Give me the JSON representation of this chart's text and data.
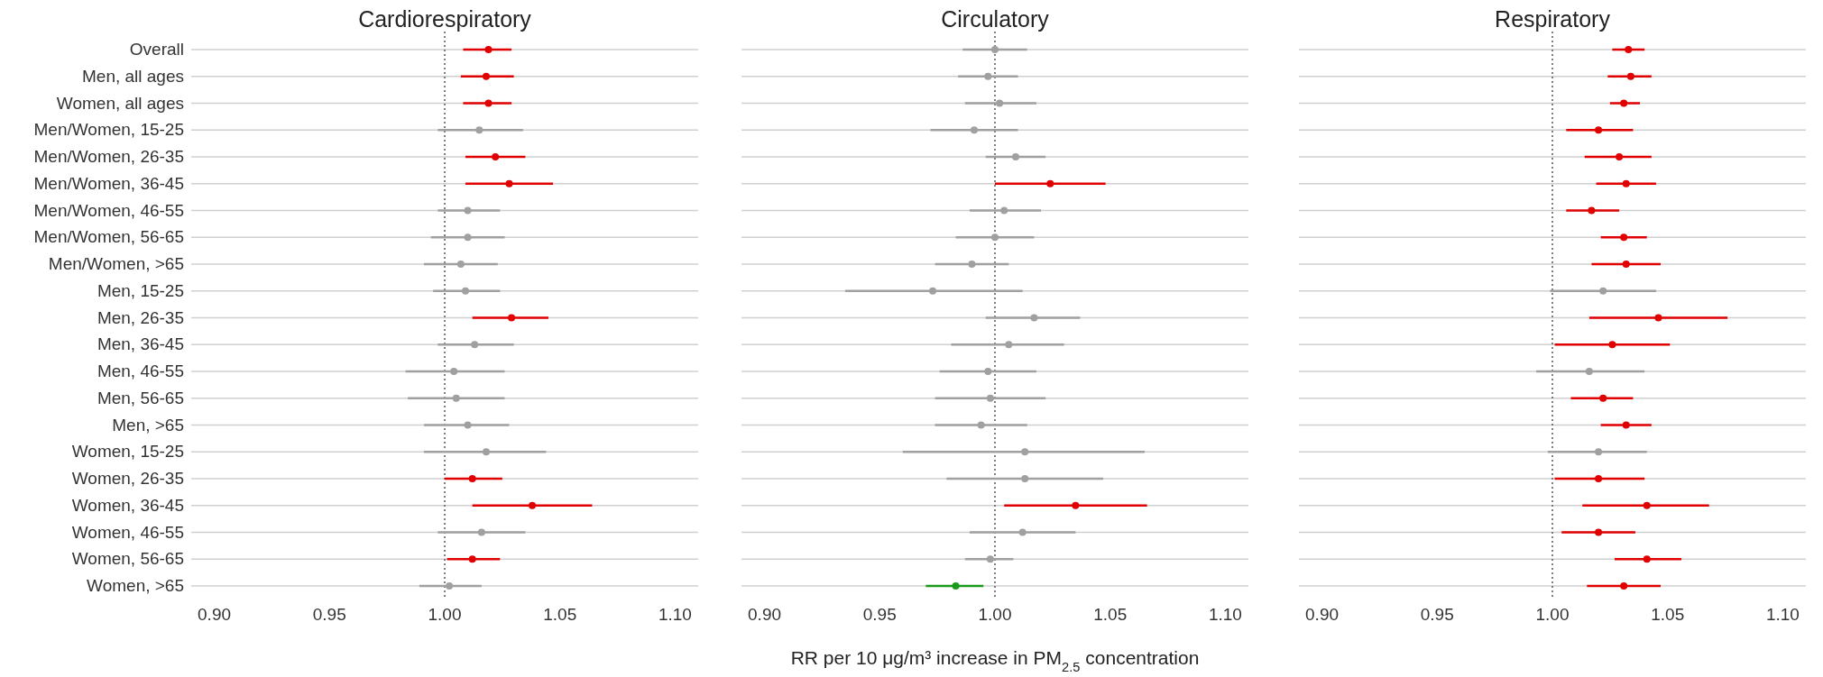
{
  "chart_data": [
    {
      "type": "scatter",
      "orientation": "horizontal",
      "title": "Cardiorespiratory",
      "categories": [
        "Overall",
        "Men, all ages",
        "Women, all ages",
        "Men/Women, 15-25",
        "Men/Women, 26-35",
        "Men/Women, 36-45",
        "Men/Women, 46-55",
        "Men/Women, 56-65",
        "Men/Women, >65",
        "Men, 15-25",
        "Men, 26-35",
        "Men, 36-45",
        "Men, 46-55",
        "Men, 56-65",
        "Men, >65",
        "Women, 15-25",
        "Women, 26-35",
        "Women, 36-45",
        "Women, 46-55",
        "Women, 56-65",
        "Women, >65"
      ],
      "values": [
        1.019,
        1.018,
        1.019,
        1.015,
        1.022,
        1.028,
        1.01,
        1.01,
        1.007,
        1.009,
        1.029,
        1.013,
        1.004,
        1.005,
        1.01,
        1.018,
        1.012,
        1.038,
        1.016,
        1.012,
        1.002
      ],
      "errors": [
        [
          1.008,
          1.029
        ],
        [
          1.007,
          1.03
        ],
        [
          1.008,
          1.029
        ],
        [
          0.997,
          1.034
        ],
        [
          1.009,
          1.035
        ],
        [
          1.009,
          1.047
        ],
        [
          0.997,
          1.024
        ],
        [
          0.994,
          1.026
        ],
        [
          0.991,
          1.023
        ],
        [
          0.995,
          1.024
        ],
        [
          1.012,
          1.045
        ],
        [
          0.997,
          1.03
        ],
        [
          0.983,
          1.026
        ],
        [
          0.984,
          1.026
        ],
        [
          0.991,
          1.028
        ],
        [
          0.991,
          1.044
        ],
        [
          1.0,
          1.025
        ],
        [
          1.012,
          1.064
        ],
        [
          0.997,
          1.035
        ],
        [
          1.001,
          1.024
        ],
        [
          0.989,
          1.016
        ]
      ],
      "colors": [
        "#e00000",
        "#e00000",
        "#e00000",
        "#a0a0a0",
        "#e00000",
        "#e00000",
        "#a0a0a0",
        "#a0a0a0",
        "#a0a0a0",
        "#a0a0a0",
        "#e00000",
        "#a0a0a0",
        "#a0a0a0",
        "#a0a0a0",
        "#a0a0a0",
        "#a0a0a0",
        "#e00000",
        "#e00000",
        "#a0a0a0",
        "#e00000",
        "#a0a0a0"
      ],
      "xlim": [
        0.89,
        1.11
      ],
      "xticks": [
        {
          "value": 0.9,
          "label": "0.90"
        },
        {
          "value": 0.95,
          "label": "0.95"
        },
        {
          "value": 1,
          "label": "1.00"
        },
        {
          "value": 1.05,
          "label": "1.05"
        },
        {
          "value": 1.1,
          "label": "1.10"
        }
      ],
      "ref_lines": [
        {
          "axis": "x",
          "value": 1,
          "color": "#555555",
          "line_style": "dotted"
        }
      ],
      "grid": "y",
      "marker": "circle"
    },
    {
      "type": "scatter",
      "orientation": "horizontal",
      "title": "Circulatory",
      "xlabel": "RR per 10 μg/m³ increase in PM$_{2.5}$ concentration",
      "tick_labels": "x",
      "values": [
        1.0,
        0.997,
        1.002,
        0.991,
        1.009,
        1.024,
        1.004,
        1.0,
        0.99,
        0.973,
        1.017,
        1.006,
        0.997,
        0.998,
        0.994,
        1.013,
        1.013,
        1.035,
        1.012,
        0.998,
        0.983
      ],
      "errors": [
        [
          0.986,
          1.014
        ],
        [
          0.984,
          1.01
        ],
        [
          0.987,
          1.018
        ],
        [
          0.972,
          1.01
        ],
        [
          0.996,
          1.022
        ],
        [
          1.0,
          1.048
        ],
        [
          0.989,
          1.02
        ],
        [
          0.983,
          1.017
        ],
        [
          0.974,
          1.006
        ],
        [
          0.935,
          1.012
        ],
        [
          0.996,
          1.037
        ],
        [
          0.981,
          1.03
        ],
        [
          0.976,
          1.018
        ],
        [
          0.974,
          1.022
        ],
        [
          0.974,
          1.014
        ],
        [
          0.96,
          1.065
        ],
        [
          0.979,
          1.047
        ],
        [
          1.004,
          1.066
        ],
        [
          0.989,
          1.035
        ],
        [
          0.987,
          1.008
        ],
        [
          0.97,
          0.995
        ]
      ],
      "colors": [
        "#a0a0a0",
        "#a0a0a0",
        "#a0a0a0",
        "#a0a0a0",
        "#a0a0a0",
        "#e00000",
        "#a0a0a0",
        "#a0a0a0",
        "#a0a0a0",
        "#a0a0a0",
        "#a0a0a0",
        "#a0a0a0",
        "#a0a0a0",
        "#a0a0a0",
        "#a0a0a0",
        "#a0a0a0",
        "#a0a0a0",
        "#e00000",
        "#a0a0a0",
        "#a0a0a0",
        "#1a9a1a"
      ],
      "xlim": [
        0.89,
        1.11
      ],
      "xticks": [
        {
          "value": 0.9,
          "label": "0.90"
        },
        {
          "value": 0.95,
          "label": "0.95"
        },
        {
          "value": 1,
          "label": "1.00"
        },
        {
          "value": 1.05,
          "label": "1.05"
        },
        {
          "value": 1.1,
          "label": "1.10"
        }
      ],
      "ref_lines": [
        {
          "axis": "x",
          "value": 1,
          "color": "#555555",
          "line_style": "dotted"
        }
      ],
      "grid": "y",
      "marker": "circle"
    },
    {
      "type": "scatter",
      "orientation": "horizontal",
      "title": "Respiratory",
      "tick_labels": "x",
      "values": [
        1.033,
        1.034,
        1.031,
        1.02,
        1.029,
        1.032,
        1.017,
        1.031,
        1.032,
        1.022,
        1.046,
        1.026,
        1.016,
        1.022,
        1.032,
        1.02,
        1.02,
        1.041,
        1.02,
        1.041,
        1.031
      ],
      "errors": [
        [
          1.026,
          1.04
        ],
        [
          1.024,
          1.043
        ],
        [
          1.025,
          1.038
        ],
        [
          1.006,
          1.035
        ],
        [
          1.014,
          1.043
        ],
        [
          1.019,
          1.045
        ],
        [
          1.006,
          1.029
        ],
        [
          1.021,
          1.041
        ],
        [
          1.017,
          1.047
        ],
        [
          0.999,
          1.045
        ],
        [
          1.016,
          1.076
        ],
        [
          1.001,
          1.051
        ],
        [
          0.993,
          1.04
        ],
        [
          1.008,
          1.035
        ],
        [
          1.021,
          1.043
        ],
        [
          0.998,
          1.041
        ],
        [
          1.001,
          1.04
        ],
        [
          1.013,
          1.068
        ],
        [
          1.004,
          1.036
        ],
        [
          1.027,
          1.056
        ],
        [
          1.015,
          1.047
        ]
      ],
      "colors": [
        "#e00000",
        "#e00000",
        "#e00000",
        "#e00000",
        "#e00000",
        "#e00000",
        "#e00000",
        "#e00000",
        "#e00000",
        "#a0a0a0",
        "#e00000",
        "#e00000",
        "#a0a0a0",
        "#e00000",
        "#e00000",
        "#a0a0a0",
        "#e00000",
        "#e00000",
        "#e00000",
        "#e00000",
        "#e00000"
      ],
      "xlim": [
        0.89,
        1.11
      ],
      "xticks": [
        {
          "value": 0.9,
          "label": "0.90"
        },
        {
          "value": 0.95,
          "label": "0.95"
        },
        {
          "value": 1,
          "label": "1.00"
        },
        {
          "value": 1.05,
          "label": "1.05"
        },
        {
          "value": 1.1,
          "label": "1.10"
        }
      ],
      "ref_lines": [
        {
          "axis": "x",
          "value": 1,
          "color": "#555555",
          "line_style": "dotted"
        }
      ],
      "grid": "y",
      "marker": "circle"
    }
  ]
}
